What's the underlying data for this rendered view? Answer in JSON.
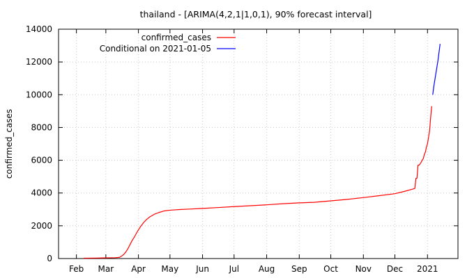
{
  "chart_data": {
    "type": "line",
    "title": "thailand -  [ARIMA(4,2,1|1,0,1), 90% forecast interval]",
    "xlabel": "",
    "ylabel": "confirmed_cases",
    "ylim": [
      0,
      14000
    ],
    "xlim": [
      "2021-01-15",
      "2022-01-30"
    ],
    "y_ticks": [
      0,
      2000,
      4000,
      6000,
      8000,
      10000,
      12000,
      14000
    ],
    "x_ticks": [
      {
        "label": "Feb",
        "date": "2021-02-01"
      },
      {
        "label": "Mar",
        "date": "2021-03-01"
      },
      {
        "label": "Apr",
        "date": "2021-04-01"
      },
      {
        "label": "May",
        "date": "2021-05-01"
      },
      {
        "label": "Jun",
        "date": "2021-06-01"
      },
      {
        "label": "Jul",
        "date": "2021-07-01"
      },
      {
        "label": "Aug",
        "date": "2021-08-01"
      },
      {
        "label": "Sep",
        "date": "2021-09-01"
      },
      {
        "label": "Oct",
        "date": "2021-10-01"
      },
      {
        "label": "Nov",
        "date": "2021-11-01"
      },
      {
        "label": "Dec",
        "date": "2021-12-01"
      },
      {
        "label": "2021",
        "date": "2022-01-01"
      }
    ],
    "grid": true,
    "legend_position": "top-left",
    "series": [
      {
        "name": "confirmed_cases",
        "color": "#ff0000",
        "points": [
          [
            "2021-02-08",
            20
          ],
          [
            "2021-02-20",
            30
          ],
          [
            "2021-03-01",
            42
          ],
          [
            "2021-03-10",
            50
          ],
          [
            "2021-03-14",
            75
          ],
          [
            "2021-03-16",
            150
          ],
          [
            "2021-03-18",
            250
          ],
          [
            "2021-03-20",
            400
          ],
          [
            "2021-03-22",
            600
          ],
          [
            "2021-03-24",
            850
          ],
          [
            "2021-03-26",
            1100
          ],
          [
            "2021-03-28",
            1300
          ],
          [
            "2021-03-31",
            1650
          ],
          [
            "2021-04-03",
            1950
          ],
          [
            "2021-04-06",
            2200
          ],
          [
            "2021-04-09",
            2400
          ],
          [
            "2021-04-12",
            2550
          ],
          [
            "2021-04-16",
            2700
          ],
          [
            "2021-04-20",
            2800
          ],
          [
            "2021-04-25",
            2900
          ],
          [
            "2021-05-01",
            2950
          ],
          [
            "2021-05-10",
            2990
          ],
          [
            "2021-05-20",
            3020
          ],
          [
            "2021-06-01",
            3060
          ],
          [
            "2021-06-15",
            3110
          ],
          [
            "2021-07-01",
            3170
          ],
          [
            "2021-07-15",
            3220
          ],
          [
            "2021-08-01",
            3280
          ],
          [
            "2021-08-15",
            3340
          ],
          [
            "2021-09-01",
            3400
          ],
          [
            "2021-09-15",
            3430
          ],
          [
            "2021-10-01",
            3520
          ],
          [
            "2021-10-15",
            3600
          ],
          [
            "2021-11-01",
            3720
          ],
          [
            "2021-11-15",
            3830
          ],
          [
            "2021-12-01",
            3960
          ],
          [
            "2021-12-10",
            4100
          ],
          [
            "2021-12-18",
            4240
          ],
          [
            "2021-12-20",
            4280
          ],
          [
            "2021-12-21",
            4900
          ],
          [
            "2021-12-22",
            4900
          ],
          [
            "2021-12-23",
            5700
          ],
          [
            "2021-12-24",
            5700
          ],
          [
            "2021-12-25",
            5780
          ],
          [
            "2021-12-26",
            5880
          ],
          [
            "2021-12-27",
            6000
          ],
          [
            "2021-12-28",
            6100
          ],
          [
            "2021-12-29",
            6350
          ],
          [
            "2021-12-30",
            6500
          ],
          [
            "2021-12-31",
            6800
          ],
          [
            "2022-01-01",
            7000
          ],
          [
            "2022-01-02",
            7400
          ],
          [
            "2022-01-03",
            7800
          ],
          [
            "2022-01-04",
            8600
          ],
          [
            "2022-01-05",
            9300
          ]
        ]
      },
      {
        "name": "Conditional on 2021-01-05",
        "color": "#0000ff",
        "points": [
          [
            "2022-01-06",
            10000
          ],
          [
            "2022-01-07",
            10500
          ],
          [
            "2022-01-09",
            11300
          ],
          [
            "2022-01-11",
            12100
          ],
          [
            "2022-01-13",
            13100
          ]
        ]
      }
    ]
  }
}
